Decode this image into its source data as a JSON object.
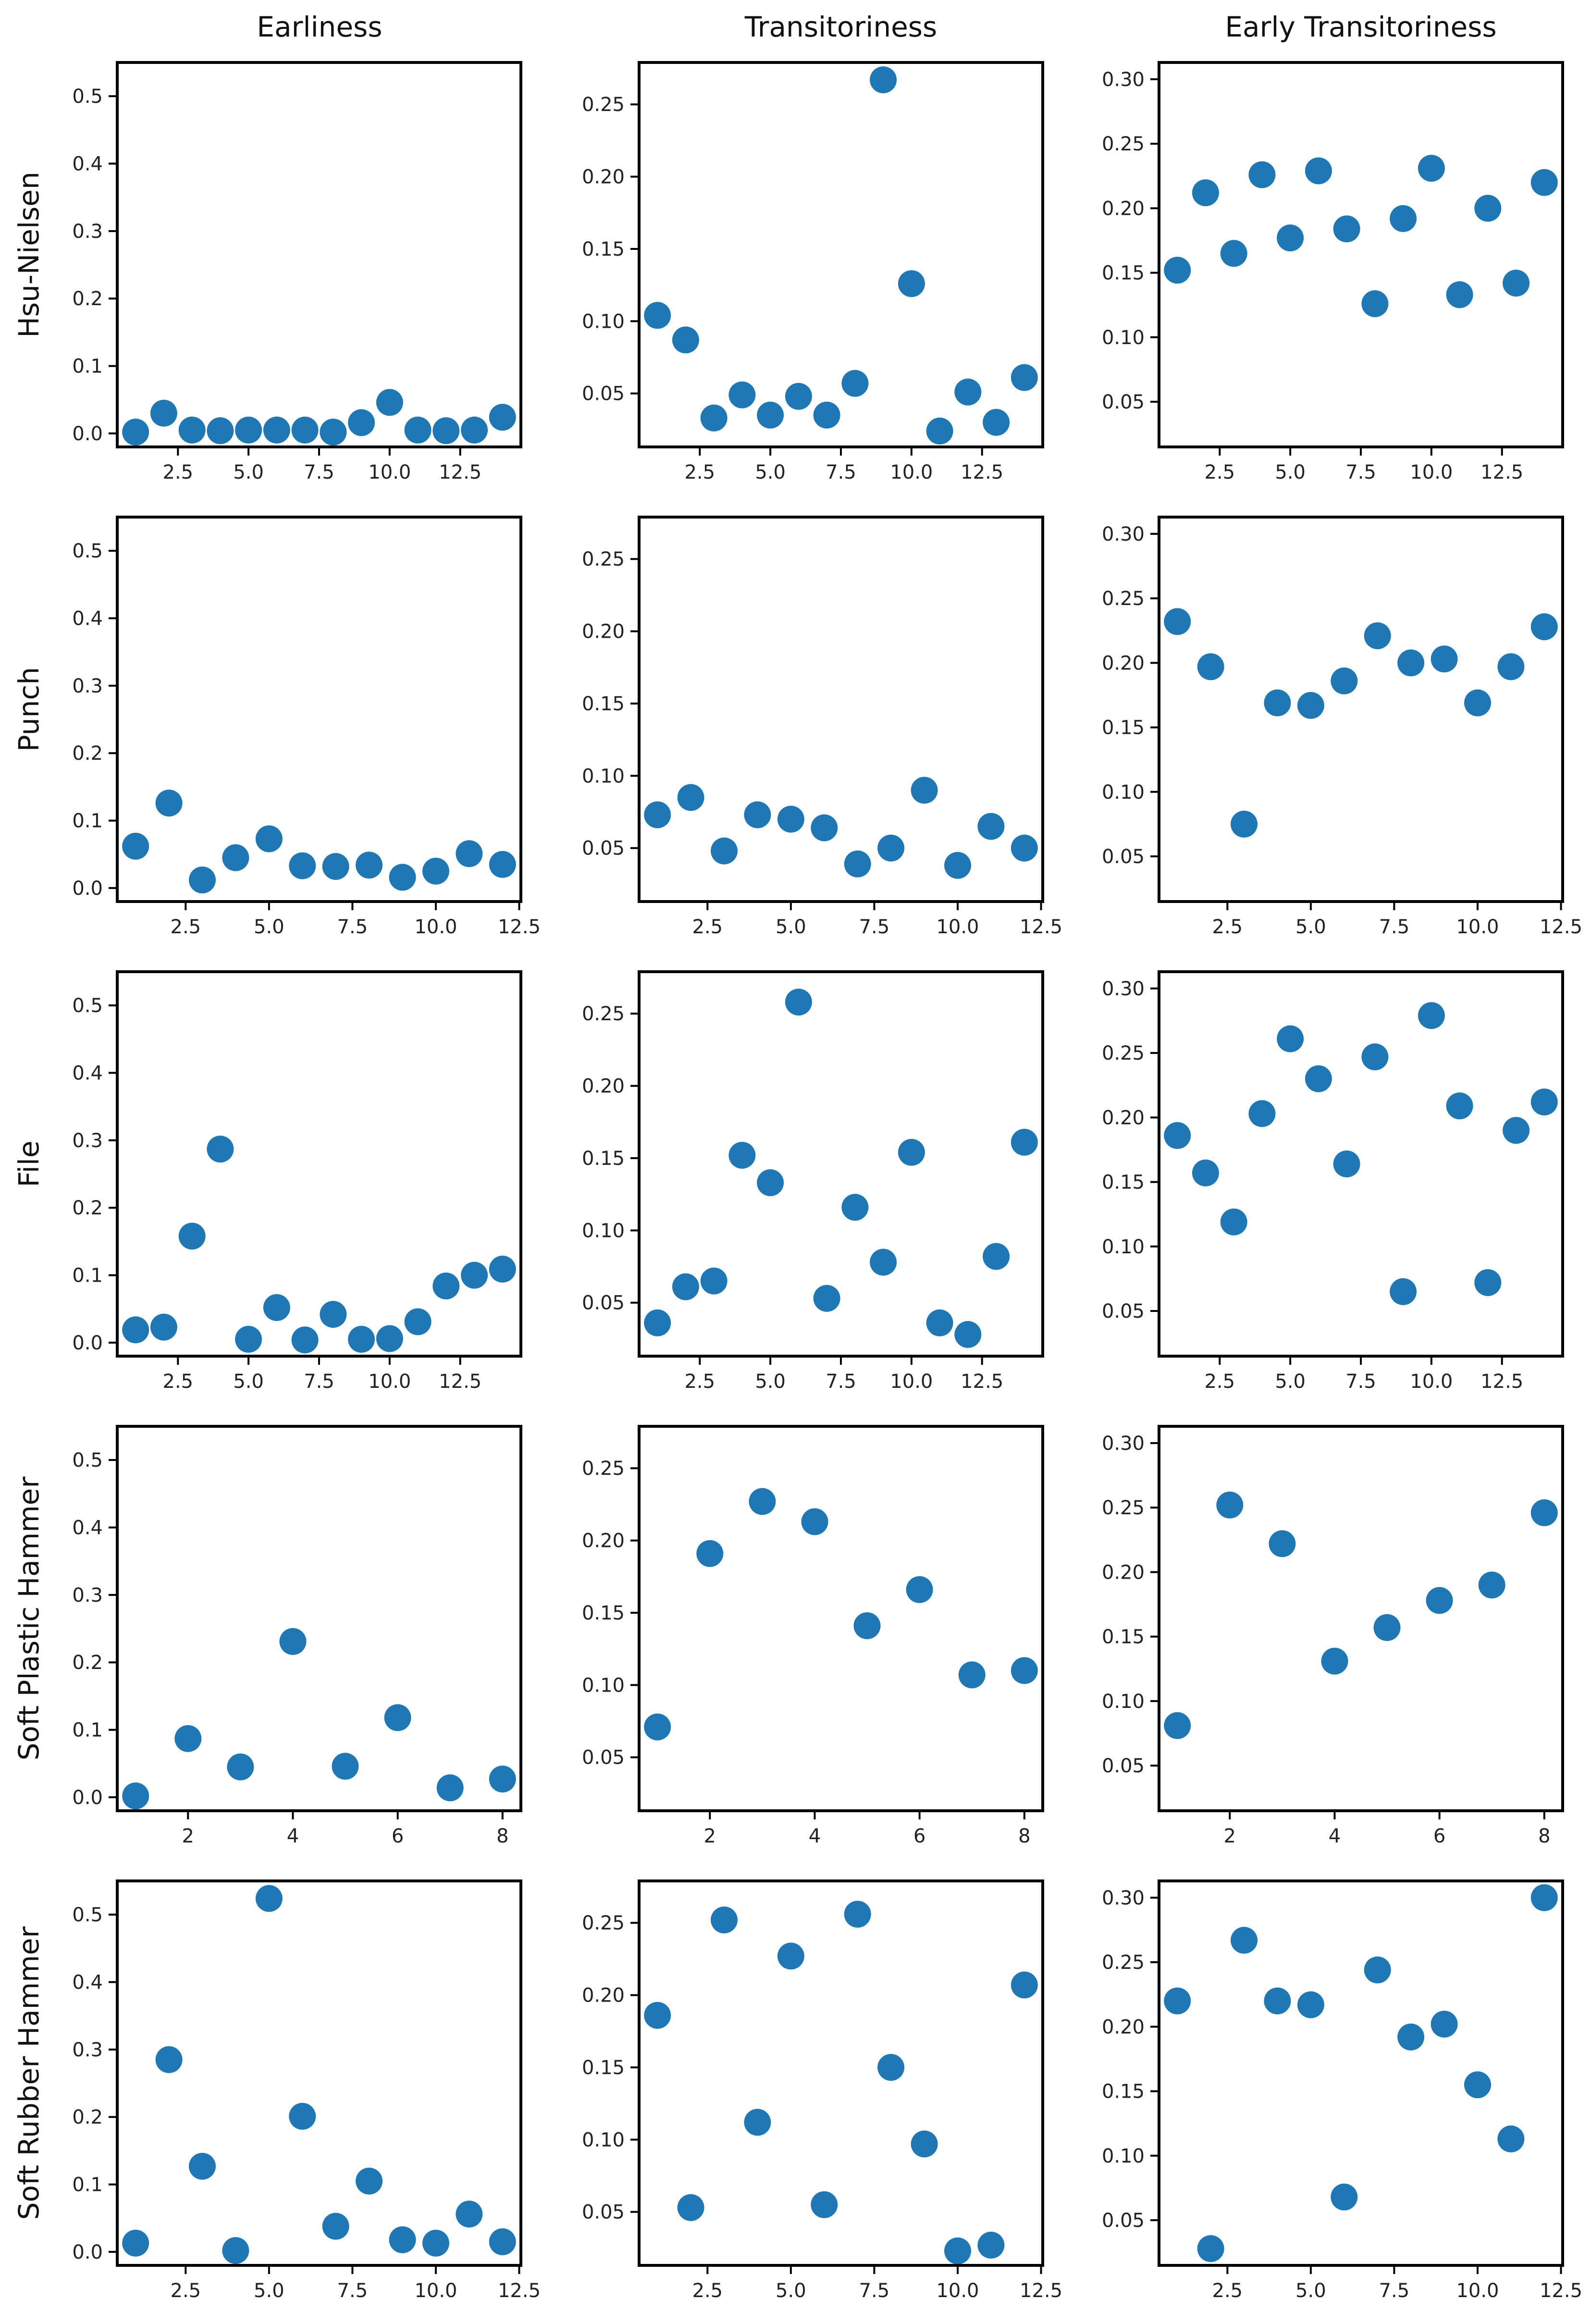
{
  "figure": {
    "column_titles": [
      "Earliness",
      "Transitoriness",
      "Early Transitoriness"
    ],
    "row_labels": [
      "Hsu-Nielsen",
      "Punch",
      "File",
      "Soft Plastic Hammer",
      "Soft Rubber Hammer"
    ],
    "marker_color": "#1f77b4"
  },
  "chart_data": [
    {
      "type": "scatter",
      "row": 0,
      "col": 0,
      "title": "Earliness",
      "ylabel": "Hsu-Nielsen",
      "x": [
        1,
        2,
        3,
        4,
        5,
        6,
        7,
        8,
        9,
        10,
        11,
        12,
        13,
        14
      ],
      "y": [
        0.002,
        0.03,
        0.005,
        0.004,
        0.005,
        0.005,
        0.005,
        0.002,
        0.016,
        0.046,
        0.005,
        0.004,
        0.005,
        0.024
      ],
      "xlim": [
        0.35,
        14.65
      ],
      "ylim": [
        -0.02,
        0.55
      ],
      "xticks": [
        2.5,
        5.0,
        7.5,
        10.0,
        12.5
      ],
      "xtick_labels": [
        "2.5",
        "5.0",
        "7.5",
        "10.0",
        "12.5"
      ],
      "yticks": [
        0.0,
        0.1,
        0.2,
        0.3,
        0.4,
        0.5
      ],
      "ytick_labels": [
        "0.0",
        "0.1",
        "0.2",
        "0.3",
        "0.4",
        "0.5"
      ]
    },
    {
      "type": "scatter",
      "row": 0,
      "col": 1,
      "title": "Transitoriness",
      "x": [
        1,
        2,
        3,
        4,
        5,
        6,
        7,
        8,
        9,
        10,
        11,
        12,
        13,
        14
      ],
      "y": [
        0.104,
        0.087,
        0.033,
        0.049,
        0.035,
        0.048,
        0.035,
        0.057,
        0.267,
        0.126,
        0.024,
        0.051,
        0.03,
        0.061
      ],
      "xlim": [
        0.35,
        14.65
      ],
      "ylim": [
        0.013,
        0.279
      ],
      "xticks": [
        2.5,
        5.0,
        7.5,
        10.0,
        12.5
      ],
      "xtick_labels": [
        "2.5",
        "5.0",
        "7.5",
        "10.0",
        "12.5"
      ],
      "yticks": [
        0.05,
        0.1,
        0.15,
        0.2,
        0.25
      ],
      "ytick_labels": [
        "0.05",
        "0.10",
        "0.15",
        "0.20",
        "0.25"
      ]
    },
    {
      "type": "scatter",
      "row": 0,
      "col": 2,
      "title": "Early Transitoriness",
      "x": [
        1,
        2,
        3,
        4,
        5,
        6,
        7,
        8,
        9,
        10,
        11,
        12,
        13,
        14
      ],
      "y": [
        0.152,
        0.212,
        0.165,
        0.226,
        0.177,
        0.229,
        0.184,
        0.126,
        0.192,
        0.231,
        0.133,
        0.2,
        0.142,
        0.22
      ],
      "xlim": [
        0.35,
        14.65
      ],
      "ylim": [
        0.015,
        0.313
      ],
      "xticks": [
        2.5,
        5.0,
        7.5,
        10.0,
        12.5
      ],
      "xtick_labels": [
        "2.5",
        "5.0",
        "7.5",
        "10.0",
        "12.5"
      ],
      "yticks": [
        0.05,
        0.1,
        0.15,
        0.2,
        0.25,
        0.3
      ],
      "ytick_labels": [
        "0.05",
        "0.10",
        "0.15",
        "0.20",
        "0.25",
        "0.30"
      ]
    },
    {
      "type": "scatter",
      "row": 1,
      "col": 0,
      "ylabel": "Punch",
      "x": [
        1,
        2,
        3,
        4,
        5,
        6,
        7,
        8,
        9,
        10,
        11,
        12
      ],
      "y": [
        0.062,
        0.126,
        0.012,
        0.045,
        0.073,
        0.033,
        0.032,
        0.034,
        0.016,
        0.025,
        0.051,
        0.035
      ],
      "xlim": [
        0.45,
        12.55
      ],
      "ylim": [
        -0.02,
        0.55
      ],
      "xticks": [
        2.5,
        5.0,
        7.5,
        10.0,
        12.5
      ],
      "xtick_labels": [
        "2.5",
        "5.0",
        "7.5",
        "10.0",
        "12.5"
      ],
      "yticks": [
        0.0,
        0.1,
        0.2,
        0.3,
        0.4,
        0.5
      ],
      "ytick_labels": [
        "0.0",
        "0.1",
        "0.2",
        "0.3",
        "0.4",
        "0.5"
      ]
    },
    {
      "type": "scatter",
      "row": 1,
      "col": 1,
      "x": [
        1,
        2,
        3,
        4,
        5,
        6,
        7,
        8,
        9,
        10,
        11,
        12
      ],
      "y": [
        0.073,
        0.085,
        0.048,
        0.073,
        0.07,
        0.064,
        0.039,
        0.05,
        0.09,
        0.038,
        0.065,
        0.05
      ],
      "xlim": [
        0.45,
        12.55
      ],
      "ylim": [
        0.013,
        0.279
      ],
      "xticks": [
        2.5,
        5.0,
        7.5,
        10.0,
        12.5
      ],
      "xtick_labels": [
        "2.5",
        "5.0",
        "7.5",
        "10.0",
        "12.5"
      ],
      "yticks": [
        0.05,
        0.1,
        0.15,
        0.2,
        0.25
      ],
      "ytick_labels": [
        "0.05",
        "0.10",
        "0.15",
        "0.20",
        "0.25"
      ]
    },
    {
      "type": "scatter",
      "row": 1,
      "col": 2,
      "x": [
        1,
        2,
        3,
        4,
        5,
        6,
        7,
        8,
        9,
        10,
        11,
        12
      ],
      "y": [
        0.232,
        0.197,
        0.075,
        0.169,
        0.167,
        0.186,
        0.221,
        0.2,
        0.203,
        0.169,
        0.197,
        0.228
      ],
      "xlim": [
        0.45,
        12.55
      ],
      "ylim": [
        0.015,
        0.313
      ],
      "xticks": [
        2.5,
        5.0,
        7.5,
        10.0,
        12.5
      ],
      "xtick_labels": [
        "2.5",
        "5.0",
        "7.5",
        "10.0",
        "12.5"
      ],
      "yticks": [
        0.05,
        0.1,
        0.15,
        0.2,
        0.25,
        0.3
      ],
      "ytick_labels": [
        "0.05",
        "0.10",
        "0.15",
        "0.20",
        "0.25",
        "0.30"
      ]
    },
    {
      "type": "scatter",
      "row": 2,
      "col": 0,
      "ylabel": "File",
      "x": [
        1,
        2,
        3,
        4,
        5,
        6,
        7,
        8,
        9,
        10,
        11,
        12,
        13,
        14
      ],
      "y": [
        0.019,
        0.023,
        0.158,
        0.287,
        0.005,
        0.052,
        0.004,
        0.042,
        0.005,
        0.006,
        0.031,
        0.084,
        0.1,
        0.109
      ],
      "xlim": [
        0.35,
        14.65
      ],
      "ylim": [
        -0.02,
        0.55
      ],
      "xticks": [
        2.5,
        5.0,
        7.5,
        10.0,
        12.5
      ],
      "xtick_labels": [
        "2.5",
        "5.0",
        "7.5",
        "10.0",
        "12.5"
      ],
      "yticks": [
        0.0,
        0.1,
        0.2,
        0.3,
        0.4,
        0.5
      ],
      "ytick_labels": [
        "0.0",
        "0.1",
        "0.2",
        "0.3",
        "0.4",
        "0.5"
      ]
    },
    {
      "type": "scatter",
      "row": 2,
      "col": 1,
      "x": [
        1,
        2,
        3,
        4,
        5,
        6,
        7,
        8,
        9,
        10,
        11,
        12,
        13,
        14
      ],
      "y": [
        0.036,
        0.061,
        0.065,
        0.152,
        0.133,
        0.258,
        0.053,
        0.116,
        0.078,
        0.154,
        0.036,
        0.028,
        0.082,
        0.161
      ],
      "xlim": [
        0.35,
        14.65
      ],
      "ylim": [
        0.013,
        0.279
      ],
      "xticks": [
        2.5,
        5.0,
        7.5,
        10.0,
        12.5
      ],
      "xtick_labels": [
        "2.5",
        "5.0",
        "7.5",
        "10.0",
        "12.5"
      ],
      "yticks": [
        0.05,
        0.1,
        0.15,
        0.2,
        0.25
      ],
      "ytick_labels": [
        "0.05",
        "0.10",
        "0.15",
        "0.20",
        "0.25"
      ]
    },
    {
      "type": "scatter",
      "row": 2,
      "col": 2,
      "x": [
        1,
        2,
        3,
        4,
        5,
        6,
        7,
        8,
        9,
        10,
        11,
        12,
        13,
        14
      ],
      "y": [
        0.186,
        0.157,
        0.119,
        0.203,
        0.261,
        0.23,
        0.164,
        0.247,
        0.065,
        0.279,
        0.209,
        0.072,
        0.19,
        0.212
      ],
      "xlim": [
        0.35,
        14.65
      ],
      "ylim": [
        0.015,
        0.313
      ],
      "xticks": [
        2.5,
        5.0,
        7.5,
        10.0,
        12.5
      ],
      "xtick_labels": [
        "2.5",
        "5.0",
        "7.5",
        "10.0",
        "12.5"
      ],
      "yticks": [
        0.05,
        0.1,
        0.15,
        0.2,
        0.25,
        0.3
      ],
      "ytick_labels": [
        "0.05",
        "0.10",
        "0.15",
        "0.20",
        "0.25",
        "0.30"
      ]
    },
    {
      "type": "scatter",
      "row": 3,
      "col": 0,
      "ylabel": "Soft Plastic Hammer",
      "x": [
        1,
        2,
        3,
        4,
        5,
        6,
        7,
        8
      ],
      "y": [
        0.002,
        0.087,
        0.045,
        0.231,
        0.046,
        0.118,
        0.014,
        0.027
      ],
      "xlim": [
        0.65,
        8.35
      ],
      "ylim": [
        -0.02,
        0.55
      ],
      "xticks": [
        2,
        4,
        6,
        8
      ],
      "xtick_labels": [
        "2",
        "4",
        "6",
        "8"
      ],
      "yticks": [
        0.0,
        0.1,
        0.2,
        0.3,
        0.4,
        0.5
      ],
      "ytick_labels": [
        "0.0",
        "0.1",
        "0.2",
        "0.3",
        "0.4",
        "0.5"
      ]
    },
    {
      "type": "scatter",
      "row": 3,
      "col": 1,
      "x": [
        1,
        2,
        3,
        4,
        5,
        6,
        7,
        8
      ],
      "y": [
        0.071,
        0.191,
        0.227,
        0.213,
        0.141,
        0.166,
        0.107,
        0.11
      ],
      "xlim": [
        0.65,
        8.35
      ],
      "ylim": [
        0.013,
        0.279
      ],
      "xticks": [
        2,
        4,
        6,
        8
      ],
      "xtick_labels": [
        "2",
        "4",
        "6",
        "8"
      ],
      "yticks": [
        0.05,
        0.1,
        0.15,
        0.2,
        0.25
      ],
      "ytick_labels": [
        "0.05",
        "0.10",
        "0.15",
        "0.20",
        "0.25"
      ]
    },
    {
      "type": "scatter",
      "row": 3,
      "col": 2,
      "x": [
        1,
        2,
        3,
        4,
        5,
        6,
        7,
        8
      ],
      "y": [
        0.081,
        0.252,
        0.222,
        0.131,
        0.157,
        0.178,
        0.19,
        0.246
      ],
      "xlim": [
        0.65,
        8.35
      ],
      "ylim": [
        0.015,
        0.313
      ],
      "xticks": [
        2,
        4,
        6,
        8
      ],
      "xtick_labels": [
        "2",
        "4",
        "6",
        "8"
      ],
      "yticks": [
        0.05,
        0.1,
        0.15,
        0.2,
        0.25,
        0.3
      ],
      "ytick_labels": [
        "0.05",
        "0.10",
        "0.15",
        "0.20",
        "0.25",
        "0.30"
      ]
    },
    {
      "type": "scatter",
      "row": 4,
      "col": 0,
      "ylabel": "Soft Rubber Hammer",
      "x": [
        1,
        2,
        3,
        4,
        5,
        6,
        7,
        8,
        9,
        10,
        11,
        12
      ],
      "y": [
        0.013,
        0.285,
        0.127,
        0.002,
        0.524,
        0.201,
        0.038,
        0.105,
        0.018,
        0.013,
        0.056,
        0.015
      ],
      "xlim": [
        0.45,
        12.55
      ],
      "ylim": [
        -0.02,
        0.55
      ],
      "xticks": [
        2.5,
        5.0,
        7.5,
        10.0,
        12.5
      ],
      "xtick_labels": [
        "2.5",
        "5.0",
        "7.5",
        "10.0",
        "12.5"
      ],
      "yticks": [
        0.0,
        0.1,
        0.2,
        0.3,
        0.4,
        0.5
      ],
      "ytick_labels": [
        "0.0",
        "0.1",
        "0.2",
        "0.3",
        "0.4",
        "0.5"
      ]
    },
    {
      "type": "scatter",
      "row": 4,
      "col": 1,
      "x": [
        1,
        2,
        3,
        4,
        5,
        6,
        7,
        8,
        9,
        10,
        11,
        12
      ],
      "y": [
        0.186,
        0.053,
        0.252,
        0.112,
        0.227,
        0.055,
        0.256,
        0.15,
        0.097,
        0.023,
        0.027,
        0.207
      ],
      "xlim": [
        0.45,
        12.55
      ],
      "ylim": [
        0.013,
        0.279
      ],
      "xticks": [
        2.5,
        5.0,
        7.5,
        10.0,
        12.5
      ],
      "xtick_labels": [
        "2.5",
        "5.0",
        "7.5",
        "10.0",
        "12.5"
      ],
      "yticks": [
        0.05,
        0.1,
        0.15,
        0.2,
        0.25
      ],
      "ytick_labels": [
        "0.05",
        "0.10",
        "0.15",
        "0.20",
        "0.25"
      ]
    },
    {
      "type": "scatter",
      "row": 4,
      "col": 2,
      "x": [
        1,
        2,
        3,
        4,
        5,
        6,
        7,
        8,
        9,
        10,
        11,
        12
      ],
      "y": [
        0.22,
        0.028,
        0.267,
        0.22,
        0.217,
        0.068,
        0.244,
        0.192,
        0.202,
        0.155,
        0.113,
        0.3
      ],
      "xlim": [
        0.45,
        12.55
      ],
      "ylim": [
        0.015,
        0.313
      ],
      "xticks": [
        2.5,
        5.0,
        7.5,
        10.0,
        12.5
      ],
      "xtick_labels": [
        "2.5",
        "5.0",
        "7.5",
        "10.0",
        "12.5"
      ],
      "yticks": [
        0.05,
        0.1,
        0.15,
        0.2,
        0.25,
        0.3
      ],
      "ytick_labels": [
        "0.05",
        "0.10",
        "0.15",
        "0.20",
        "0.25",
        "0.30"
      ]
    }
  ]
}
